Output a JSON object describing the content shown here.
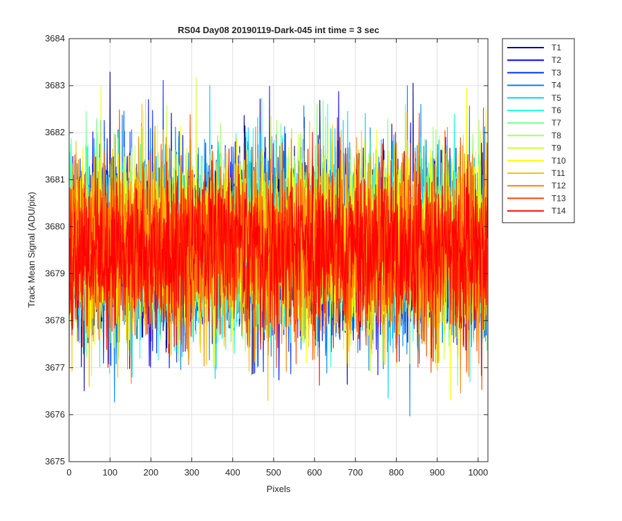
{
  "chart_data": {
    "type": "line",
    "title": "RS04 Day08 20190119-Dark-045 int time = 3 sec",
    "xlabel": "Pixels",
    "ylabel": "Track Mean Signal (ADU/pix)",
    "xlim": [
      0,
      1024
    ],
    "ylim": [
      3675,
      3684
    ],
    "xticks": [
      0,
      100,
      200,
      300,
      400,
      500,
      600,
      700,
      800,
      900,
      1000
    ],
    "yticks": [
      3675,
      3676,
      3677,
      3678,
      3679,
      3680,
      3681,
      3682,
      3683,
      3684
    ],
    "grid": true,
    "legend_position": "outside-top-right",
    "x_count": 1024,
    "series": [
      {
        "name": "T1",
        "color": "#00008F",
        "mean": 3679.6,
        "spread": 1.0
      },
      {
        "name": "T2",
        "color": "#0000FF",
        "mean": 3679.6,
        "spread": 1.0
      },
      {
        "name": "T3",
        "color": "#0030FF",
        "mean": 3679.6,
        "spread": 1.0
      },
      {
        "name": "T4",
        "color": "#0080FF",
        "mean": 3679.6,
        "spread": 1.0
      },
      {
        "name": "T5",
        "color": "#00CFFF",
        "mean": 3679.6,
        "spread": 1.0
      },
      {
        "name": "T6",
        "color": "#20FFDF",
        "mean": 3679.6,
        "spread": 0.95
      },
      {
        "name": "T7",
        "color": "#70FF8F",
        "mean": 3679.6,
        "spread": 0.95
      },
      {
        "name": "T8",
        "color": "#9FFF60",
        "mean": 3679.6,
        "spread": 0.95
      },
      {
        "name": "T9",
        "color": "#CFFF30",
        "mean": 3679.6,
        "spread": 0.95
      },
      {
        "name": "T10",
        "color": "#FFFF00",
        "mean": 3679.6,
        "spread": 0.95
      },
      {
        "name": "T11",
        "color": "#FFBF00",
        "mean": 3679.5,
        "spread": 0.95
      },
      {
        "name": "T12",
        "color": "#FF8000",
        "mean": 3679.5,
        "spread": 0.95
      },
      {
        "name": "T13",
        "color": "#FF4000",
        "mean": 3679.5,
        "spread": 0.9
      },
      {
        "name": "T14",
        "color": "#FF0000",
        "mean": 3679.5,
        "spread": 0.85
      }
    ]
  }
}
